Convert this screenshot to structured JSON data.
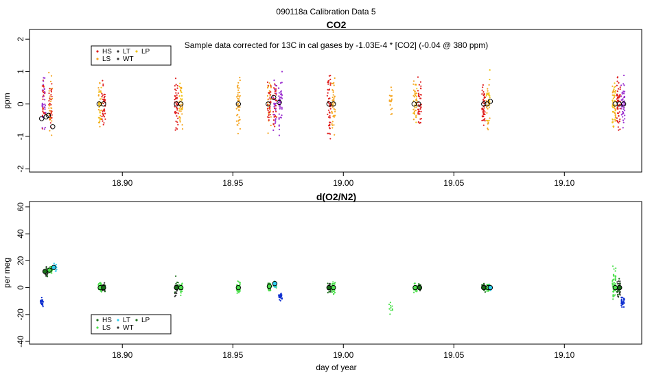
{
  "figure_title": "090118a   Calibration Data 5",
  "colors": {
    "HS": "#e0201f",
    "LS": "#f5a623",
    "LT": "#f0c419",
    "WT": "#333333",
    "LP": "#f0a020",
    "mean_marker": "#000000"
  },
  "chart_data": [
    {
      "type": "scatter",
      "id": "co2",
      "title": "CO2",
      "xlabel": "",
      "ylabel": "ppm",
      "xlim": [
        18.858,
        19.135
      ],
      "ylim": [
        -2.1,
        2.3
      ],
      "xticks": [
        18.9,
        18.95,
        19.0,
        19.05,
        19.1
      ],
      "xtick_labels": [
        "18.90",
        "18.95",
        "19.00",
        "19.05",
        "19.10"
      ],
      "yticks": [
        -2,
        -1,
        0,
        1,
        2
      ],
      "ytick_labels": [
        "-2",
        "-1",
        "0",
        "1",
        "2"
      ],
      "annotation": "Sample data corrected for 13C in cal gases by -1.03E-4 * [CO2] (-0.04 @ 380 ppm)",
      "legend": {
        "location": "top-left",
        "entries": [
          {
            "label": "HS",
            "color": "#e0201f"
          },
          {
            "label": "LS",
            "color": "#f5a623"
          },
          {
            "label": "LT",
            "color": "#333333"
          },
          {
            "label": "WT",
            "color": "#333333"
          },
          {
            "label": "LP",
            "color": "#f0c419"
          }
        ]
      },
      "clusters": [
        {
          "x": 18.8645,
          "spread": 1.1,
          "n": 55,
          "seed": 11,
          "colors": [
            "#9b30d0",
            "#e0201f"
          ]
        },
        {
          "x": 18.8675,
          "spread": 1.4,
          "n": 55,
          "seed": 12,
          "colors": [
            "#e0201f",
            "#f5a623"
          ]
        },
        {
          "x": 18.89,
          "spread": 1.1,
          "n": 45,
          "seed": 13,
          "colors": [
            "#f5a623",
            "#f0c419"
          ]
        },
        {
          "x": 18.8915,
          "spread": 1.0,
          "n": 40,
          "seed": 14,
          "colors": [
            "#e0201f"
          ]
        },
        {
          "x": 18.9245,
          "spread": 1.1,
          "n": 45,
          "seed": 15,
          "colors": [
            "#e0201f"
          ]
        },
        {
          "x": 18.9265,
          "spread": 1.2,
          "n": 40,
          "seed": 16,
          "colors": [
            "#f5a623",
            "#f0c419"
          ]
        },
        {
          "x": 18.9525,
          "spread": 1.3,
          "n": 45,
          "seed": 17,
          "colors": [
            "#f5a623"
          ]
        },
        {
          "x": 18.9665,
          "spread": 1.2,
          "n": 55,
          "seed": 18,
          "colors": [
            "#f5a623",
            "#e0201f"
          ]
        },
        {
          "x": 18.969,
          "spread": 1.2,
          "n": 55,
          "seed": 19,
          "colors": [
            "#e0201f",
            "#9b30d0"
          ]
        },
        {
          "x": 18.9715,
          "spread": 1.1,
          "n": 45,
          "seed": 20,
          "colors": [
            "#9b30d0"
          ]
        },
        {
          "x": 18.9935,
          "spread": 1.3,
          "n": 45,
          "seed": 21,
          "colors": [
            "#e0201f"
          ]
        },
        {
          "x": 18.9955,
          "spread": 1.1,
          "n": 40,
          "seed": 22,
          "colors": [
            "#f5a623"
          ]
        },
        {
          "x": 19.0215,
          "spread": 0.8,
          "n": 18,
          "seed": 23,
          "colors": [
            "#f5a623"
          ]
        },
        {
          "x": 19.0325,
          "spread": 1.1,
          "n": 45,
          "seed": 24,
          "colors": [
            "#f5a623",
            "#f0c419"
          ]
        },
        {
          "x": 19.0345,
          "spread": 1.0,
          "n": 40,
          "seed": 25,
          "colors": [
            "#e0201f"
          ]
        },
        {
          "x": 19.0635,
          "spread": 1.0,
          "n": 45,
          "seed": 26,
          "colors": [
            "#e0201f"
          ]
        },
        {
          "x": 19.0655,
          "spread": 1.2,
          "n": 45,
          "seed": 27,
          "colors": [
            "#f5a623",
            "#f0c419"
          ]
        },
        {
          "x": 19.1225,
          "spread": 1.3,
          "n": 55,
          "seed": 28,
          "colors": [
            "#f5a623",
            "#f0c419"
          ]
        },
        {
          "x": 19.1245,
          "spread": 1.2,
          "n": 50,
          "seed": 29,
          "colors": [
            "#e0201f"
          ]
        },
        {
          "x": 19.1265,
          "spread": 1.1,
          "n": 50,
          "seed": 30,
          "colors": [
            "#9b30d0"
          ]
        }
      ],
      "means": [
        {
          "x": 18.8635,
          "y": -0.45
        },
        {
          "x": 18.8655,
          "y": -0.4
        },
        {
          "x": 18.8665,
          "y": -0.35
        },
        {
          "x": 18.8685,
          "y": -0.7
        },
        {
          "x": 18.8895,
          "y": 0.0
        },
        {
          "x": 18.8915,
          "y": 0.0
        },
        {
          "x": 18.9245,
          "y": 0.0
        },
        {
          "x": 18.9265,
          "y": 0.0
        },
        {
          "x": 18.9525,
          "y": 0.0
        },
        {
          "x": 18.966,
          "y": 0.0
        },
        {
          "x": 18.9685,
          "y": 0.2
        },
        {
          "x": 18.971,
          "y": 0.05
        },
        {
          "x": 18.9935,
          "y": 0.0
        },
        {
          "x": 18.9955,
          "y": 0.0
        },
        {
          "x": 19.032,
          "y": 0.0
        },
        {
          "x": 19.034,
          "y": 0.0
        },
        {
          "x": 19.0635,
          "y": 0.0
        },
        {
          "x": 19.065,
          "y": 0.0
        },
        {
          "x": 19.0665,
          "y": 0.08
        },
        {
          "x": 19.123,
          "y": 0.0
        },
        {
          "x": 19.1248,
          "y": 0.0
        },
        {
          "x": 19.1268,
          "y": 0.0
        }
      ]
    },
    {
      "type": "scatter",
      "id": "o2n2",
      "title": "d(O2/N2)",
      "xlabel": "day of year",
      "ylabel": "per meg",
      "xlim": [
        18.858,
        19.135
      ],
      "ylim": [
        -42,
        64
      ],
      "xticks": [
        18.9,
        18.95,
        19.0,
        19.05,
        19.1
      ],
      "xtick_labels": [
        "18.90",
        "18.95",
        "19.00",
        "19.05",
        "19.10"
      ],
      "yticks": [
        -40,
        -20,
        0,
        20,
        40,
        60
      ],
      "ytick_labels": [
        "-40",
        "-20",
        "0",
        "20",
        "40",
        "60"
      ],
      "legend": {
        "location": "bottom-left",
        "entries": [
          {
            "label": "HS",
            "color": "#1a6e1a"
          },
          {
            "label": "LS",
            "color": "#4ce04c"
          },
          {
            "label": "LT",
            "color": "#30d0f0"
          },
          {
            "label": "WT",
            "color": "#333333"
          },
          {
            "label": "LP",
            "color": "#1a6e1a"
          }
        ]
      },
      "clusters": [
        {
          "x": 18.8635,
          "center": -11,
          "spread": 5,
          "n": 25,
          "seed": 41,
          "colors": [
            "#1030d0"
          ]
        },
        {
          "x": 18.8655,
          "center": 12,
          "spread": 5,
          "n": 30,
          "seed": 42,
          "colors": [
            "#1a6e1a",
            "#333333"
          ]
        },
        {
          "x": 18.8675,
          "center": 13,
          "spread": 4,
          "n": 30,
          "seed": 43,
          "colors": [
            "#4ce04c"
          ]
        },
        {
          "x": 18.8695,
          "center": 15,
          "spread": 4,
          "n": 25,
          "seed": 44,
          "colors": [
            "#30d0f0"
          ]
        },
        {
          "x": 18.89,
          "center": 0,
          "spread": 5,
          "n": 35,
          "seed": 45,
          "colors": [
            "#4ce04c"
          ]
        },
        {
          "x": 18.8915,
          "center": 0,
          "spread": 5,
          "n": 30,
          "seed": 46,
          "colors": [
            "#333333",
            "#1a6e1a"
          ]
        },
        {
          "x": 18.9245,
          "center": 0,
          "spread": 10,
          "n": 35,
          "seed": 47,
          "colors": [
            "#1a6e1a",
            "#333333"
          ]
        },
        {
          "x": 18.9265,
          "center": 0,
          "spread": 8,
          "n": 35,
          "seed": 48,
          "colors": [
            "#4ce04c"
          ]
        },
        {
          "x": 18.9525,
          "center": 0,
          "spread": 7,
          "n": 35,
          "seed": 49,
          "colors": [
            "#4ce04c"
          ]
        },
        {
          "x": 18.9665,
          "center": 1,
          "spread": 6,
          "n": 35,
          "seed": 50,
          "colors": [
            "#4ce04c",
            "#1a6e1a"
          ]
        },
        {
          "x": 18.969,
          "center": 2,
          "spread": 4,
          "n": 30,
          "seed": 51,
          "colors": [
            "#30d0f0",
            "#4ce04c"
          ]
        },
        {
          "x": 18.9715,
          "center": -7,
          "spread": 4,
          "n": 25,
          "seed": 52,
          "colors": [
            "#1030d0"
          ]
        },
        {
          "x": 18.9935,
          "center": 0,
          "spread": 6,
          "n": 35,
          "seed": 53,
          "colors": [
            "#1a6e1a",
            "#333333"
          ]
        },
        {
          "x": 18.9955,
          "center": 0,
          "spread": 7,
          "n": 30,
          "seed": 54,
          "colors": [
            "#4ce04c"
          ]
        },
        {
          "x": 19.0215,
          "center": -14,
          "spread": 7,
          "n": 10,
          "seed": 55,
          "colors": [
            "#4ce04c"
          ]
        },
        {
          "x": 19.0325,
          "center": 0,
          "spread": 5,
          "n": 30,
          "seed": 56,
          "colors": [
            "#4ce04c"
          ]
        },
        {
          "x": 19.0345,
          "center": 0,
          "spread": 4,
          "n": 30,
          "seed": 57,
          "colors": [
            "#333333",
            "#1a6e1a"
          ]
        },
        {
          "x": 19.0635,
          "center": 0,
          "spread": 4,
          "n": 30,
          "seed": 58,
          "colors": [
            "#333333",
            "#1a6e1a"
          ]
        },
        {
          "x": 19.0655,
          "center": 0,
          "spread": 4,
          "n": 30,
          "seed": 59,
          "colors": [
            "#4ce04c"
          ]
        },
        {
          "x": 19.0665,
          "center": 0,
          "spread": 3,
          "n": 20,
          "seed": 60,
          "colors": [
            "#30d0f0"
          ]
        },
        {
          "x": 19.1225,
          "center": 2,
          "spread": 18,
          "n": 55,
          "seed": 61,
          "colors": [
            "#4ce04c"
          ]
        },
        {
          "x": 19.1245,
          "center": 0,
          "spread": 10,
          "n": 40,
          "seed": 62,
          "colors": [
            "#1a6e1a",
            "#333333"
          ]
        },
        {
          "x": 19.1265,
          "center": -11,
          "spread": 6,
          "n": 30,
          "seed": 63,
          "colors": [
            "#1030d0"
          ]
        }
      ],
      "means": [
        {
          "x": 18.865,
          "y": 12,
          "fill": "#1a6e1a"
        },
        {
          "x": 18.867,
          "y": 13,
          "fill": "#4ce04c"
        },
        {
          "x": 18.869,
          "y": 15,
          "fill": "#30d0f0"
        },
        {
          "x": 18.89,
          "y": 0,
          "fill": "#4ce04c"
        },
        {
          "x": 18.8915,
          "y": 0,
          "fill": "#1a6e1a"
        },
        {
          "x": 18.9245,
          "y": 0,
          "fill": "#1a6e1a"
        },
        {
          "x": 18.9265,
          "y": 0,
          "fill": "#4ce04c"
        },
        {
          "x": 18.9525,
          "y": 0,
          "fill": "#4ce04c"
        },
        {
          "x": 18.9665,
          "y": 1,
          "fill": "#4ce04c"
        },
        {
          "x": 18.969,
          "y": 3,
          "fill": "#30d0f0"
        },
        {
          "x": 18.9935,
          "y": 0,
          "fill": "#1a6e1a"
        },
        {
          "x": 18.9955,
          "y": 0,
          "fill": "#4ce04c"
        },
        {
          "x": 19.0325,
          "y": 0,
          "fill": "#4ce04c"
        },
        {
          "x": 19.0345,
          "y": 0,
          "fill": "#1a6e1a"
        },
        {
          "x": 19.0635,
          "y": 0,
          "fill": "#1a6e1a"
        },
        {
          "x": 19.0655,
          "y": 0,
          "fill": "#4ce04c"
        },
        {
          "x": 19.0665,
          "y": 0,
          "fill": "#30d0f0"
        },
        {
          "x": 19.123,
          "y": 0,
          "fill": "#4ce04c"
        },
        {
          "x": 19.125,
          "y": 0,
          "fill": "#1a6e1a"
        }
      ]
    }
  ]
}
